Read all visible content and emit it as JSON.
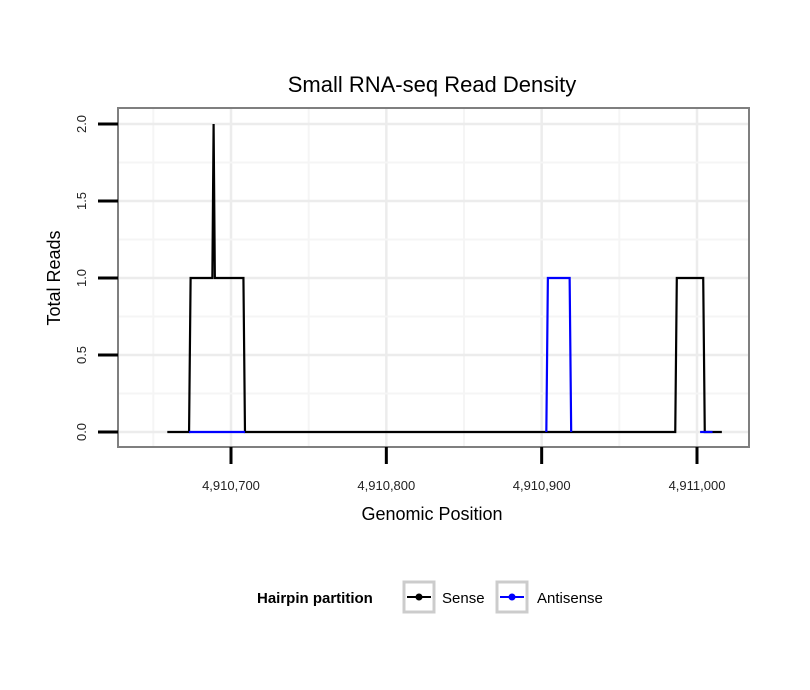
{
  "chart_data": {
    "type": "line",
    "title": "Small RNA-seq Read Density",
    "xlabel": "Genomic Position",
    "ylabel": "Total Reads",
    "xlim": [
      4910640,
      4911030
    ],
    "ylim": [
      -0.07,
      2.1
    ],
    "x_ticks": [
      4910700,
      4910800,
      4910900,
      4911000
    ],
    "x_tick_labels": [
      "4,910,700",
      "4,910,800",
      "4,910,900",
      "4,911,000"
    ],
    "y_ticks": [
      0.0,
      0.5,
      1.0,
      1.5,
      2.0
    ],
    "y_tick_labels": [
      "0.0",
      "0.5",
      "1.0",
      "1.5",
      "2.0"
    ],
    "grid": true,
    "legend": {
      "title": "Hairpin partition",
      "position": "bottom",
      "entries": [
        "Sense",
        "Antisense"
      ]
    },
    "series": [
      {
        "name": "Sense",
        "color": "#000000",
        "x": [
          4910659,
          4910673,
          4910674,
          4910688,
          4910688.5,
          4910689,
          4910689.5,
          4910690,
          4910708,
          4910709,
          4911016,
          4911016
        ],
        "y": [
          0,
          0,
          1,
          1,
          2,
          2,
          1,
          1,
          1,
          0,
          0,
          0
        ],
        "segments": [
          {
            "x": [
              4910659,
              4910673,
              4910674,
              4910688,
              4910688.8,
              4910689.6,
              4910690,
              4910708,
              4910709,
              4910986,
              4910987,
              4911004,
              4911005,
              4911016
            ],
            "y": [
              0,
              0,
              1,
              1,
              2,
              1,
              1,
              1,
              0,
              0,
              1,
              1,
              0,
              0
            ]
          }
        ]
      },
      {
        "name": "Antisense",
        "color": "#0000ff",
        "segments": [
          {
            "x": [
              4910673,
              4910709
            ],
            "y": [
              0,
              0
            ]
          },
          {
            "x": [
              4910903,
              4910904,
              4910918,
              4910919
            ],
            "y": [
              0,
              1,
              1,
              0
            ]
          },
          {
            "x": [
              4911002,
              4911010
            ],
            "y": [
              0,
              0
            ]
          }
        ]
      }
    ]
  }
}
